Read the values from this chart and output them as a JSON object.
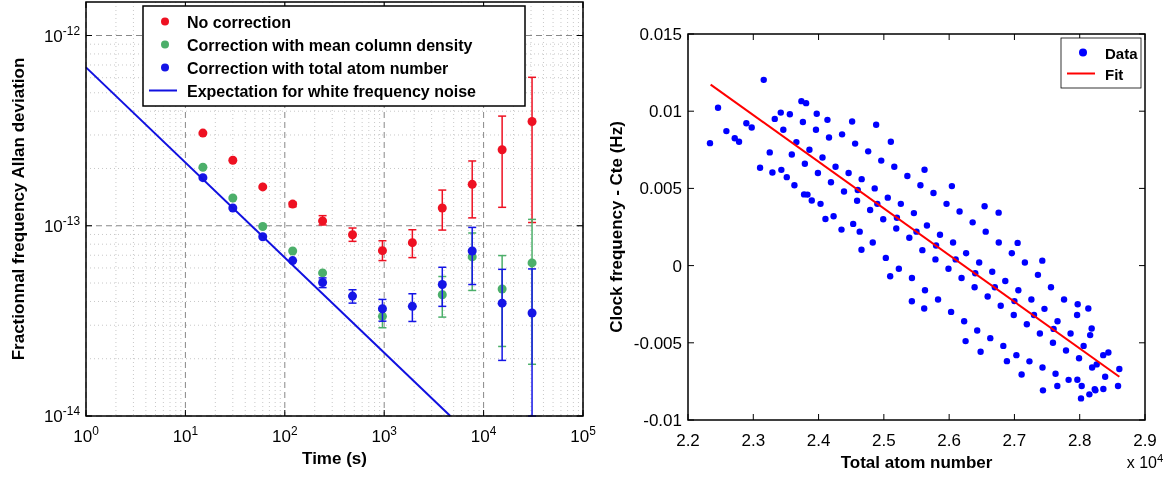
{
  "chart_data": [
    {
      "type": "scatter",
      "xlabel": "Time (s)",
      "ylabel": "Fractionnal frequency Allan deviation",
      "log": "xy",
      "grid": true,
      "legend": "top",
      "xlim": [
        1,
        100000
      ],
      "ylim": [
        1e-14,
        1.5e-12
      ],
      "xticks": [
        {
          "value": 1,
          "label": "10$^{0}$"
        },
        {
          "value": 10,
          "label": "10$^{1}$"
        },
        {
          "value": 100,
          "label": "10$^{2}$"
        },
        {
          "value": 1000,
          "label": "10$^{3}$"
        },
        {
          "value": 10000,
          "label": "10$^{4}$"
        },
        {
          "value": 100000,
          "label": "10$^{5}$"
        }
      ],
      "yticks": [
        {
          "value": 1e-14,
          "label": "10$^{-14}$"
        },
        {
          "value": 1e-13,
          "label": "10$^{-13}$"
        },
        {
          "value": 1e-12,
          "label": "10$^{-12}$"
        }
      ],
      "x": [
        15,
        30,
        60,
        120,
        240,
        480,
        960,
        1920,
        3840,
        7680,
        15360,
        30720
      ],
      "series": [
        {
          "name": "No correction",
          "color": "#ee1122",
          "marker": "circle",
          "values": [
            3.07e-13,
            2.21e-13,
            1.6e-13,
            1.3e-13,
            1.06e-13,
            8.97e-14,
            7.4e-14,
            8.15e-14,
            1.24e-13,
            1.65e-13,
            2.51e-13,
            3.53e-13
          ],
          "errors": [
            null,
            null,
            null,
            [
              1.26e-13,
              1.33e-13
            ],
            [
              1.01e-13,
              1.13e-13
            ],
            [
              8.28e-14,
              9.73e-14
            ],
            [
              6.56e-14,
              8.34e-14
            ],
            [
              6.8e-14,
              9.53e-14
            ],
            [
              9.49e-14,
              1.54e-13
            ],
            [
              1.1e-13,
              2.19e-13
            ],
            [
              1.25e-13,
              3.77e-13
            ],
            [
              1.04e-13,
              6.03e-13
            ]
          ]
        },
        {
          "name": "Correction with mean column density",
          "color": "#4caf6a",
          "marker": "circle",
          "values": [
            2.03e-13,
            1.4e-13,
            9.91e-14,
            7.37e-14,
            5.65e-14,
            null,
            3.34e-14,
            null,
            4.34e-14,
            6.86e-14,
            4.65e-14,
            6.38e-14
          ],
          "errors": [
            null,
            null,
            null,
            null,
            null,
            null,
            [
              2.91e-14,
              3.59e-14
            ],
            null,
            [
              3.31e-14,
              5.41e-14
            ],
            [
              4.57e-14,
              9.16e-14
            ],
            [
              2.32e-14,
              6.97e-14
            ],
            [
              1.87e-14,
              1.08e-13
            ]
          ]
        },
        {
          "name": "Correction with total atom number",
          "color": "#1515e6",
          "marker": "circle",
          "values": [
            1.79e-13,
            1.24e-13,
            8.75e-14,
            6.56e-14,
            5.03e-14,
            4.27e-14,
            3.66e-14,
            3.77e-14,
            4.91e-14,
            7.37e-14,
            3.92e-14,
            3.48e-14
          ],
          "errors": [
            null,
            null,
            null,
            null,
            [
              4.73e-14,
              5.32e-14
            ],
            [
              3.92e-14,
              4.61e-14
            ],
            [
              3.15e-14,
              4.1e-14
            ],
            [
              3.14e-14,
              4.39e-14
            ],
            [
              3.77e-14,
              6.05e-14
            ],
            [
              4.91e-14,
              9.8e-14
            ],
            [
              1.96e-14,
              5.9e-14
            ],
            [
              1e-14,
              5.93e-14
            ]
          ]
        },
        {
          "name": "Expectation for white frequency noise",
          "type": "line",
          "color": "#1010e0",
          "marker": "none",
          "x": [
            1,
            4624
          ],
          "values": [
            6.8e-13,
            1e-14
          ]
        }
      ]
    },
    {
      "type": "scatter",
      "xlabel": "Total atom number",
      "ylabel": "Clock frequency - Cte (Hz)",
      "legend": "top right",
      "xlim": [
        2.2,
        2.9
      ],
      "ylim": [
        -0.01,
        0.015
      ],
      "xticks": [
        2.2,
        2.3,
        2.4,
        2.5,
        2.6,
        2.7,
        2.8,
        2.9
      ],
      "yticks": [
        -0.01,
        -0.005,
        0,
        0.005,
        0.01,
        0.015
      ],
      "annotations": [
        "x 10$^{4}$"
      ],
      "series": [
        {
          "name": "Data",
          "color": "#0000ff",
          "marker": "circle",
          "x": [
            2.2337,
            2.246,
            2.2588,
            2.2716,
            2.2782,
            2.2894,
            2.2976,
            2.316,
            2.3104,
            2.3252,
            2.3293,
            2.3421,
            2.3329,
            2.3513,
            2.3737,
            2.3809,
            2.3778,
            2.3896,
            2.3972,
            2.4105,
            2.4136,
            2.4351,
            2.4514,
            2.4657,
            2.4882,
            2.5107,
            2.5097,
            2.5429,
            2.5618,
            2.5623,
            2.6042,
            2.6543,
            2.6758,
            2.6252,
            2.6482,
            2.6885,
            2.7049,
            2.7427,
            2.711,
            2.7437,
            2.7657,
            2.7969,
            2.8132,
            2.8183,
            2.802,
            2.8148,
            2.824,
            2.8362,
            2.8439,
            2.8587,
            2.8607,
            2.7964,
            2.356,
            2.346,
            2.359,
            2.343,
            2.376,
            2.366,
            2.379,
            2.363,
            2.396,
            2.386,
            2.399,
            2.383,
            2.416,
            2.406,
            2.419,
            2.403,
            2.436,
            2.426,
            2.439,
            2.423,
            2.456,
            2.446,
            2.459,
            2.453,
            2.476,
            2.466,
            2.479,
            2.463,
            2.496,
            2.486,
            2.499,
            2.483,
            2.516,
            2.506,
            2.519,
            2.503,
            2.536,
            2.526,
            2.539,
            2.523,
            2.556,
            2.546,
            2.559,
            2.543,
            2.576,
            2.566,
            2.579,
            2.563,
            2.596,
            2.586,
            2.599,
            2.583,
            2.616,
            2.606,
            2.619,
            2.603,
            2.636,
            2.626,
            2.639,
            2.623,
            2.656,
            2.646,
            2.659,
            2.643,
            2.676,
            2.666,
            2.679,
            2.663,
            2.696,
            2.686,
            2.699,
            2.683,
            2.716,
            2.706,
            2.719,
            2.703,
            2.736,
            2.726,
            2.739,
            2.723,
            2.756,
            2.746,
            2.759,
            2.743,
            2.776,
            2.766,
            2.779,
            2.763,
            2.796,
            2.786,
            2.799,
            2.783,
            2.816,
            2.806,
            2.819,
            2.803,
            2.836,
            2.826,
            2.839,
            2.823,
            2.46,
            2.49,
            2.52,
            2.55,
            2.58,
            2.61,
            2.64,
            2.67,
            2.7,
            2.73,
            2.76
          ],
          "values": [
            0.00793,
            0.01022,
            0.00871,
            0.00825,
            0.00802,
            0.00922,
            0.00894,
            0.01203,
            0.00634,
            0.00733,
            0.00603,
            0.00991,
            0.0095,
            0.00573,
            0.01065,
            0.01052,
            0.00461,
            0.00422,
            0.00983,
            0.00302,
            0.00944,
            0.00233,
            0.00933,
            0.00103,
            0.00912,
            0.00802,
            -0.00069,
            -0.00231,
            -0.00278,
            0.00621,
            0.00515,
            0.00384,
            0.00343,
            -0.00489,
            -0.00558,
            -0.00619,
            0.00147,
            0.00032,
            -0.00705,
            -0.00808,
            -0.0078,
            -0.0025,
            -0.00278,
            -0.00407,
            -0.0086,
            -0.00834,
            -0.00808,
            -0.00799,
            -0.00563,
            -0.0078,
            -0.0067,
            -0.00739,
            0.0098,
            0.0088,
            0.0072,
            0.0062,
            0.0093,
            0.008,
            0.0066,
            0.0052,
            0.0088,
            0.0075,
            0.006,
            0.0046,
            0.0083,
            0.007,
            0.0054,
            0.004,
            0.0085,
            0.0064,
            0.0048,
            0.0032,
            0.0079,
            0.006,
            0.0042,
            0.0027,
            0.0074,
            0.0056,
            0.0036,
            0.0022,
            0.0068,
            0.005,
            0.003,
            0.0015,
            0.0064,
            0.0044,
            0.0024,
            0.0005,
            0.0058,
            0.004,
            0.0018,
            -0.0002,
            0.0052,
            0.0034,
            0.001,
            -0.0008,
            0.0047,
            0.0026,
            0.0004,
            -0.0016,
            0.004,
            0.002,
            -0.0002,
            -0.0022,
            0.0035,
            0.0015,
            -0.0008,
            -0.003,
            0.0028,
            0.0008,
            -0.0014,
            -0.0036,
            0.0022,
            0.0002,
            -0.002,
            -0.0042,
            0.0015,
            -0.0004,
            -0.0026,
            -0.0047,
            0.0008,
            -0.001,
            -0.0032,
            -0.0052,
            0.0002,
            -0.0016,
            -0.0038,
            -0.0058,
            -0.0006,
            -0.0022,
            -0.0044,
            -0.0062,
            -0.0014,
            -0.0028,
            -0.005,
            -0.0066,
            -0.0022,
            -0.0036,
            -0.0055,
            -0.007,
            -0.0032,
            -0.0044,
            -0.006,
            -0.0074,
            -0.0045,
            -0.0052,
            -0.0066,
            -0.0078,
            -0.0058,
            -0.0064,
            -0.0072,
            -0.008,
            0.0049,
            0.004,
            0.0031,
            0.0022,
            0.0013,
            0.0004,
            -0.0005,
            -0.0014,
            -0.0023,
            -0.0032,
            -0.0041
          ]
        },
        {
          "name": "Fit",
          "type": "line",
          "color": "#ff0000",
          "marker": "none",
          "x": [
            2.2347,
            2.8607
          ],
          "values": [
            0.01172,
            -0.0072
          ]
        }
      ]
    }
  ]
}
